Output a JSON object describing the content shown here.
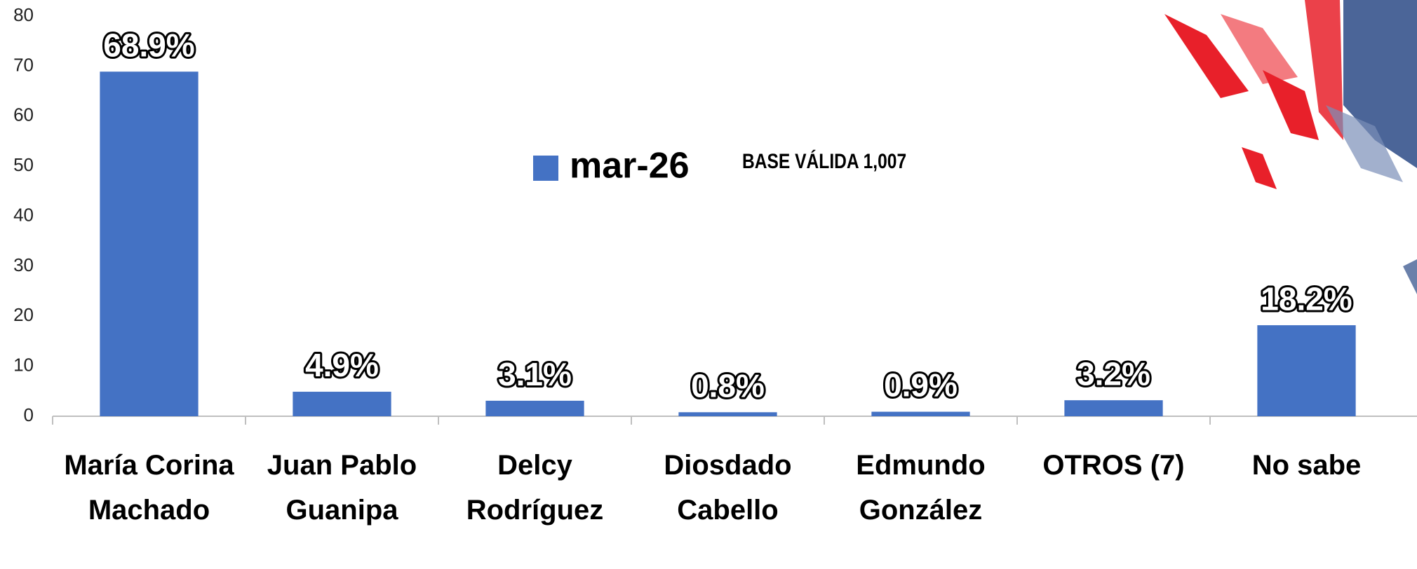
{
  "chart_data": {
    "type": "bar",
    "categories": [
      "María Corina Machado",
      "Juan Pablo Guanipa",
      "Delcy Rodríguez",
      "Diosdado Cabello",
      "Edmundo González",
      "OTROS (7)",
      "No sabe"
    ],
    "series": [
      {
        "name": "mar-26",
        "color": "#4472c4",
        "values": [
          68.9,
          4.9,
          3.1,
          0.8,
          0.9,
          3.2,
          18.2
        ],
        "value_labels": [
          "68.9%",
          "4.9%",
          "3.1%",
          "0.8%",
          "0.9%",
          "3.2%",
          "18.2%"
        ]
      }
    ],
    "annotation": "BASE VÁLIDA 1,007",
    "ylim": [
      0,
      80
    ],
    "yticks": [
      0,
      10,
      20,
      30,
      40,
      50,
      60,
      70,
      80
    ],
    "grid": false
  }
}
